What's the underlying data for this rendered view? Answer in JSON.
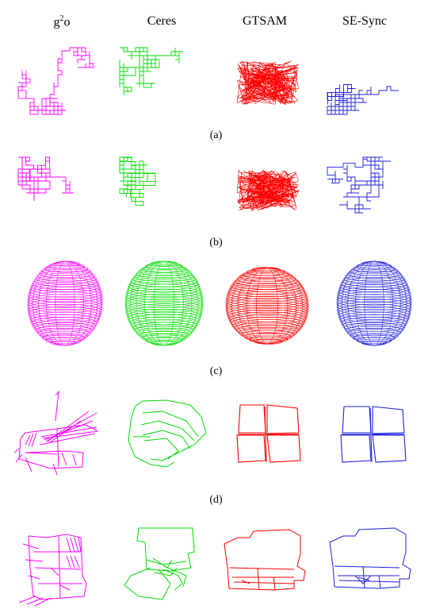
{
  "methods": [
    {
      "id": "g2o",
      "label_base": "g",
      "label_sup": "2",
      "label_tail": "o",
      "color": "#ff00ff"
    },
    {
      "id": "ceres",
      "label_base": "Ceres",
      "label_sup": "",
      "label_tail": "",
      "color": "#00dd00"
    },
    {
      "id": "gtsam",
      "label_base": "GTSAM",
      "label_sup": "",
      "label_tail": "",
      "color": "#ff0000"
    },
    {
      "id": "sesync",
      "label_base": "SE-Sync",
      "label_sup": "",
      "label_tail": "",
      "color": "#1f1fdd"
    }
  ],
  "rows": [
    {
      "id": "a",
      "caption": "(a)"
    },
    {
      "id": "b",
      "caption": "(b)"
    },
    {
      "id": "c",
      "caption": "(c)"
    },
    {
      "id": "d",
      "caption": "(d)"
    },
    {
      "id": "e",
      "caption": ""
    }
  ]
}
